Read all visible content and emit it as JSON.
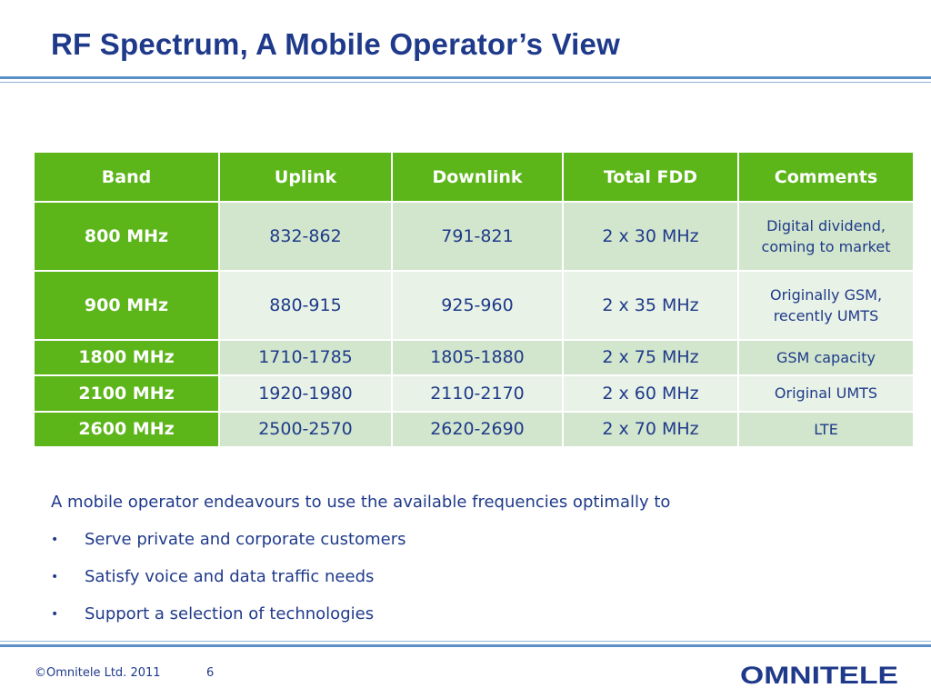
{
  "slide": {
    "title": "RF Spectrum, A Mobile Operator’s View",
    "table": {
      "headers": [
        "Band",
        "Uplink",
        "Downlink",
        "Total FDD",
        "Comments"
      ],
      "rows": [
        {
          "band": "800 MHz",
          "uplink": "832-862",
          "downlink": "791-821",
          "total": "2 x 30 MHz",
          "comment_lines": [
            "Digital dividend,",
            "coming to market"
          ]
        },
        {
          "band": "900 MHz",
          "uplink": "880-915",
          "downlink": "925-960",
          "total": "2 x 35 MHz",
          "comment_lines": [
            "Originally GSM,",
            "recently UMTS"
          ]
        },
        {
          "band": "1800 MHz",
          "uplink": "1710-1785",
          "downlink": "1805-1880",
          "total": "2 x 75 MHz",
          "comment_lines": [
            "GSM capacity"
          ]
        },
        {
          "band": "2100 MHz",
          "uplink": "1920-1980",
          "downlink": "2110-2170",
          "total": "2 x 60 MHz",
          "comment_lines": [
            "Original UMTS"
          ]
        },
        {
          "band": "2600 MHz",
          "uplink": "2500-2570",
          "downlink": "2620-2690",
          "total": "2 x 70 MHz",
          "comment_lines": [
            "LTE"
          ]
        }
      ]
    },
    "intro": "A mobile operator endeavours to use the available frequencies optimally to",
    "bullet_char": "•",
    "bullets": [
      "Serve private and corporate customers",
      "Satisfy voice and data traffic needs",
      "Support a selection of technologies"
    ]
  },
  "footer": {
    "copyright": "©Omnitele Ltd. 2011",
    "page_number": "6",
    "logo_text": "OMNITELE"
  },
  "colors": {
    "title": "#1f3a8a",
    "header_green": "#5cb519",
    "row_light": "#e8f2e6",
    "row_dark": "#d2e6cd",
    "rule_blue": "#5b8fc7"
  }
}
